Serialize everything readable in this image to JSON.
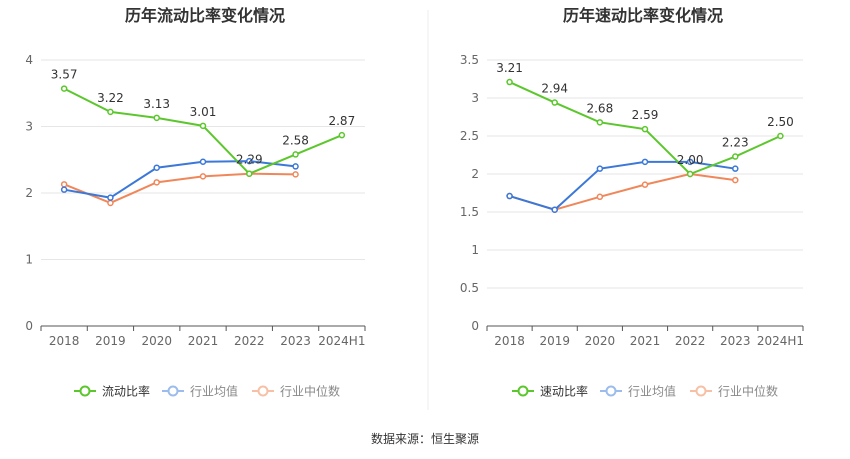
{
  "chart_data": [
    {
      "type": "line",
      "title": "历年流动比率变化情况",
      "categories": [
        "2018",
        "2019",
        "2020",
        "2021",
        "2022",
        "2023",
        "2024H1"
      ],
      "ylim": [
        0,
        4
      ],
      "yticks": [
        "0",
        "1",
        "2",
        "3",
        "4"
      ],
      "grid": true,
      "legend_placement": "bottom",
      "series": [
        {
          "name": "流动比率",
          "color": "#5cc72d",
          "values": [
            3.57,
            3.22,
            3.13,
            3.01,
            2.29,
            2.58,
            2.87
          ],
          "labels": [
            "3.57",
            "3.22",
            "3.13",
            "3.01",
            "2.29",
            "2.58",
            "2.87"
          ]
        },
        {
          "name": "行业均值",
          "color": "#3b78d8",
          "values": [
            2.05,
            1.93,
            2.38,
            2.47,
            2.48,
            2.4,
            null
          ]
        },
        {
          "name": "行业中位数",
          "color": "#f0875a",
          "values": [
            2.13,
            1.85,
            2.16,
            2.25,
            2.29,
            2.28,
            null
          ]
        }
      ]
    },
    {
      "type": "line",
      "title": "历年速动比率变化情况",
      "categories": [
        "2018",
        "2019",
        "2020",
        "2021",
        "2022",
        "2023",
        "2024H1"
      ],
      "ylim": [
        0,
        3.5
      ],
      "yticks": [
        "0",
        "0.5",
        "1",
        "1.5",
        "2",
        "2.5",
        "3",
        "3.5"
      ],
      "grid": true,
      "legend_placement": "bottom",
      "series": [
        {
          "name": "速动比率",
          "color": "#5cc72d",
          "values": [
            3.21,
            2.94,
            2.68,
            2.59,
            2.0,
            2.23,
            2.5
          ],
          "labels": [
            "3.21",
            "2.94",
            "2.68",
            "2.59",
            "2.00",
            "2.23",
            "2.50"
          ]
        },
        {
          "name": "行业均值",
          "color": "#3b78d8",
          "values": [
            1.71,
            1.53,
            2.07,
            2.16,
            2.16,
            2.07,
            null
          ]
        },
        {
          "name": "行业中位数",
          "color": "#f0875a",
          "values": [
            1.71,
            1.53,
            1.7,
            1.86,
            2.0,
            1.92,
            null
          ]
        }
      ]
    }
  ],
  "footer": {
    "source": "数据来源：恒生聚源"
  }
}
